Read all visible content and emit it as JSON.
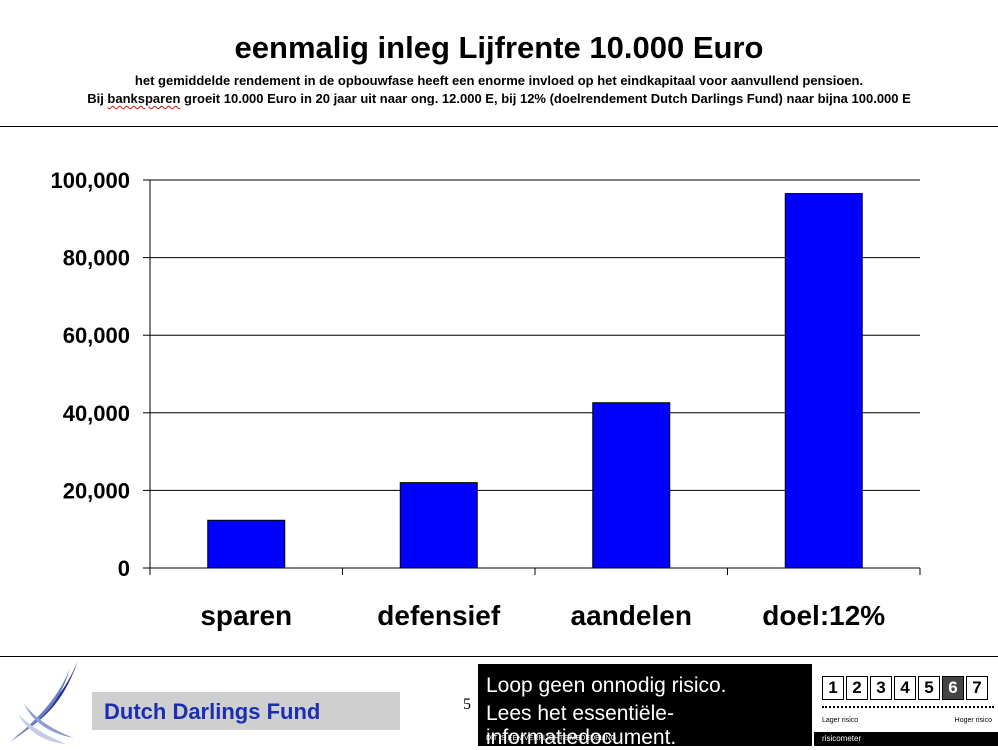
{
  "header": {
    "title": "eenmalig inleg Lijfrente 10.000 Euro",
    "subtitle_line1": "het gemiddelde rendement in de opbouwfase heeft een enorme invloed op het eindkapitaal voor aanvullend pensioen.",
    "subtitle_line2_pre": "Bij ",
    "subtitle_line2_flagged": "banksparen",
    "subtitle_line2_post": " groeit 10.000 Euro in 20 jaar uit naar ong. 12.000 E, bij 12% (doelrendement Dutch Darlings Fund) naar bijna 100.000 E"
  },
  "chart_data": {
    "type": "bar",
    "categories": [
      "sparen",
      "defensief",
      "aandelen",
      "doel:12%"
    ],
    "values": [
      12300,
      22000,
      42600,
      96500
    ],
    "ylim": [
      0,
      100000
    ],
    "yticks": [
      0,
      20000,
      40000,
      60000,
      80000,
      100000
    ],
    "ytick_labels": [
      "0",
      "20,000",
      "40,000",
      "60,000",
      "80,000",
      "100,000"
    ],
    "grid": true,
    "bar_color": "#0000ff",
    "legend": "none"
  },
  "footer": {
    "brand": "Dutch Darlings Fund",
    "brand_color": "#1a2fb0",
    "page_number": "5",
    "banner_line1": "Loop geen onnodig risico.",
    "banner_line2": "Lees het essentiële-informatiedocument.",
    "banner_small": "DIT IS EEN VERPLICHTE MEDEDELING",
    "risk_levels": [
      "1",
      "2",
      "3",
      "4",
      "5",
      "6",
      "7"
    ],
    "risk_selected": "6",
    "risk_low_label": "Lager risico",
    "risk_high_label": "Hoger risico",
    "risk_meter_label": "risicometer"
  }
}
